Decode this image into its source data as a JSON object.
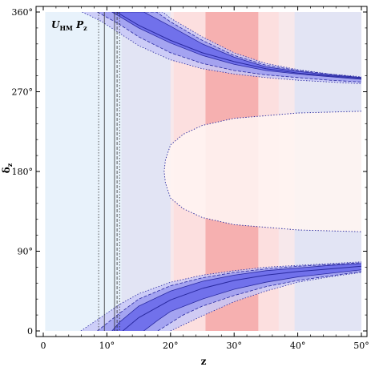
{
  "chart_data": {
    "type": "area",
    "panel_label": {
      "main": "U",
      "sub": "HM",
      "param_main": "P",
      "param_sub": "z"
    },
    "xlabel": "z",
    "ylabel": {
      "main": "δ",
      "sub": "z"
    },
    "x_unit": "°",
    "y_unit": "°",
    "xlim": [
      -1,
      51
    ],
    "ylim": [
      -5,
      362
    ],
    "x_ticks": [
      0,
      10,
      20,
      30,
      40,
      50
    ],
    "y_ticks": [
      0,
      90,
      180,
      270,
      360
    ],
    "x_tick_labels": [
      "0",
      "10°",
      "20°",
      "30°",
      "40°",
      "50°"
    ],
    "y_tick_labels": [
      "0",
      "90°",
      "180°",
      "270°",
      "360°"
    ],
    "background_color": "#eaf4fc",
    "colors": {
      "light_blue_bg": "#e8f2fb",
      "lavender": "#e2e4f4",
      "pink": "#fcdcdc",
      "red": "#f4a8a8",
      "blue_1sigma": "#6b6bea",
      "blue_2sigma": "#9c9cf0",
      "blue_3sigma": "#c8c8f7",
      "line_blue": "#2a2aa0"
    },
    "vertical_bands": [
      {
        "name": "light-blue",
        "x": [
          0.3,
          50
        ]
      },
      {
        "name": "lavender",
        "x": [
          12.3,
          50
        ]
      },
      {
        "name": "pink-3sigma",
        "x": [
          20,
          39.5
        ]
      },
      {
        "name": "pink-2sigma",
        "x": [
          20.5,
          37
        ]
      },
      {
        "name": "red-1sigma",
        "x": [
          25.5,
          33.8
        ]
      }
    ],
    "vertical_lines": [
      {
        "style": "solid",
        "x": 9.6
      },
      {
        "style": "solid",
        "x": 11.2
      },
      {
        "style": "dotted",
        "x": 8.7
      },
      {
        "style": "dotted",
        "x": 12.0
      },
      {
        "style": "dashed",
        "x": 11.6
      }
    ],
    "bands_upper": [
      {
        "sigma": 3,
        "outer": [
          [
            9.8,
            360
          ],
          [
            18.8,
            360
          ],
          [
            20,
            353
          ],
          [
            25,
            332
          ],
          [
            30,
            314
          ],
          [
            35,
            302
          ],
          [
            40,
            295
          ],
          [
            45,
            290
          ],
          [
            50,
            287
          ]
        ],
        "inner": [
          [
            6.1,
            360
          ],
          [
            9,
            350
          ],
          [
            12,
            336
          ],
          [
            15,
            322
          ],
          [
            20,
            306
          ],
          [
            25,
            296
          ],
          [
            30,
            290
          ],
          [
            35,
            286
          ],
          [
            40,
            283
          ],
          [
            45,
            281
          ],
          [
            50,
            279
          ]
        ]
      },
      {
        "sigma": 2,
        "outer": [
          [
            10.8,
            360
          ],
          [
            17.8,
            360
          ],
          [
            20,
            349
          ],
          [
            25,
            328
          ],
          [
            30,
            311
          ],
          [
            35,
            300
          ],
          [
            40,
            294
          ],
          [
            45,
            290
          ],
          [
            50,
            286
          ]
        ],
        "inner": [
          [
            8.5,
            360
          ],
          [
            12,
            346
          ],
          [
            15,
            332
          ],
          [
            20,
            314
          ],
          [
            25,
            302
          ],
          [
            30,
            294
          ],
          [
            35,
            289
          ],
          [
            40,
            286
          ],
          [
            45,
            283
          ],
          [
            50,
            281
          ]
        ]
      },
      {
        "sigma": 1,
        "outer": [
          [
            10.8,
            360
          ],
          [
            15.8,
            360
          ],
          [
            20,
            344
          ],
          [
            25,
            324
          ],
          [
            30,
            309
          ],
          [
            35,
            298
          ],
          [
            40,
            293
          ],
          [
            45,
            289
          ],
          [
            50,
            286
          ]
        ],
        "inner": [
          [
            10.8,
            360
          ],
          [
            12,
            355
          ],
          [
            15,
            342
          ],
          [
            20,
            325
          ],
          [
            25,
            311
          ],
          [
            30,
            301
          ],
          [
            35,
            294
          ],
          [
            40,
            290
          ],
          [
            45,
            287
          ],
          [
            50,
            284
          ]
        ]
      }
    ],
    "bands_lower": [
      {
        "sigma": 3,
        "outer": [
          [
            5.9,
            0
          ],
          [
            9,
            15
          ],
          [
            12,
            30
          ],
          [
            15,
            42
          ],
          [
            20,
            55
          ],
          [
            25,
            63
          ],
          [
            30,
            68
          ],
          [
            35,
            72
          ],
          [
            40,
            74
          ],
          [
            45,
            76
          ],
          [
            50,
            78
          ]
        ],
        "inner": [
          [
            20,
            0
          ],
          [
            25,
            17
          ],
          [
            30,
            33
          ],
          [
            35,
            45
          ],
          [
            40,
            55
          ],
          [
            45,
            61
          ],
          [
            50,
            66
          ]
        ]
      },
      {
        "sigma": 2,
        "outer": [
          [
            8.5,
            0
          ],
          [
            12,
            20
          ],
          [
            15,
            36
          ],
          [
            20,
            51
          ],
          [
            25,
            60
          ],
          [
            30,
            66
          ],
          [
            35,
            70
          ],
          [
            40,
            73
          ],
          [
            45,
            75
          ],
          [
            50,
            77
          ]
        ],
        "inner": [
          [
            18,
            0
          ],
          [
            22,
            18
          ],
          [
            25,
            28
          ],
          [
            30,
            40
          ],
          [
            35,
            50
          ],
          [
            40,
            57
          ],
          [
            45,
            62
          ],
          [
            50,
            67
          ]
        ]
      },
      {
        "sigma": 1,
        "outer": [
          [
            10.8,
            0
          ],
          [
            12,
            10
          ],
          [
            15,
            28
          ],
          [
            20,
            45
          ],
          [
            25,
            56
          ],
          [
            30,
            63
          ],
          [
            35,
            68
          ],
          [
            40,
            71
          ],
          [
            45,
            74
          ],
          [
            50,
            76
          ]
        ],
        "inner": [
          [
            15.8,
            0
          ],
          [
            18,
            12
          ],
          [
            20,
            22
          ],
          [
            25,
            36
          ],
          [
            30,
            47
          ],
          [
            35,
            55
          ],
          [
            40,
            61
          ],
          [
            45,
            65
          ],
          [
            50,
            69
          ]
        ]
      }
    ],
    "central_curves": {
      "upper": [
        [
          11.5,
          360
        ],
        [
          15,
          345
        ],
        [
          20,
          328
        ],
        [
          25,
          314
        ],
        [
          30,
          304
        ],
        [
          35,
          296
        ],
        [
          40,
          291
        ],
        [
          45,
          288
        ],
        [
          50,
          285
        ]
      ],
      "lower": [
        [
          12.5,
          0
        ],
        [
          15,
          15
        ],
        [
          20,
          35
        ],
        [
          25,
          48
        ],
        [
          30,
          57
        ],
        [
          35,
          63
        ],
        [
          40,
          67
        ],
        [
          45,
          70
        ],
        [
          50,
          73
        ]
      ]
    },
    "lavender_upper_boundary": [
      [
        12.3,
        360
      ],
      [
        15,
        339
      ],
      [
        20,
        318
      ],
      [
        25,
        304
      ],
      [
        30,
        295
      ],
      [
        35,
        289
      ],
      [
        40,
        285
      ],
      [
        45,
        282
      ],
      [
        50,
        280
      ]
    ],
    "lavender_lower_boundary": [
      [
        12.3,
        0
      ],
      [
        15,
        21
      ],
      [
        20,
        42
      ],
      [
        25,
        56
      ],
      [
        30,
        65
      ],
      [
        35,
        71
      ],
      [
        40,
        75
      ],
      [
        45,
        78
      ],
      [
        50,
        80
      ]
    ],
    "pink_lobe": [
      [
        50,
        248
      ],
      [
        40,
        246
      ],
      [
        30,
        240
      ],
      [
        25,
        232
      ],
      [
        22,
        222
      ],
      [
        20,
        210
      ],
      [
        19.2,
        193
      ],
      [
        19,
        180
      ],
      [
        19.2,
        167
      ],
      [
        20,
        150
      ],
      [
        22,
        138
      ],
      [
        25,
        128
      ],
      [
        30,
        120
      ],
      [
        40,
        114
      ],
      [
        50,
        112
      ]
    ]
  }
}
